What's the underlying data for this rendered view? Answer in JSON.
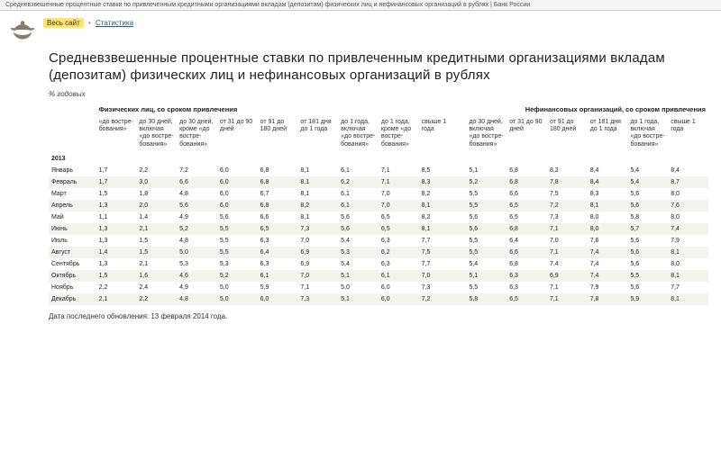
{
  "browser_tab": "Средневзвешенные процентные ставки по привлеченным кредитными организациями вкладам (депозитам) физических лиц и нефинансовых организаций в рублях | Банк России",
  "breadcrumb": {
    "all_site": "Весь сайт",
    "sep": "•",
    "stats": "Статистика"
  },
  "title": "Средневзвешенные процентные ставки по привлеченным кредитными организациями вкладам (депозитам) физических лиц и нефинансовых организаций в рублях",
  "unit": "% годовых",
  "group_left": "Физических лиц, со сроком привлечения",
  "group_right": "Нефинансовых организаций, со сроком привлечения",
  "cols": [
    "«до востре-бования»",
    "до 30 дней, включая «до востре-бования»",
    "до 30 дней, кроме «до востре-бования»",
    "от 31 до 90 дней",
    "от 91 до 180 дней",
    "от 181 дня до 1 года",
    "до 1 года, включая «до востре-бования»",
    "до 1 года, кроме «до востре-бования»",
    "свыше 1 года",
    "до 30 дней, включая «до востре-бования»",
    "от 31 до 90 дней",
    "от 91 до 180 дней",
    "от 181 дня до 1 года",
    "до 1 года, включая «до востре-бования»",
    "свыше 1 года"
  ],
  "year": "2013",
  "months": [
    "Январь",
    "Февраль",
    "Март",
    "Апрель",
    "Май",
    "Июнь",
    "Июль",
    "Август",
    "Сентябрь",
    "Октябрь",
    "Ноябрь",
    "Декабрь"
  ],
  "rows": [
    [
      "1,7",
      "2,2",
      "7,2",
      "6,0",
      "6,8",
      "8,1",
      "6,1",
      "7,1",
      "8,5",
      "5,1",
      "6,8",
      "8,2",
      "8,4",
      "5,4",
      "8,4"
    ],
    [
      "1,7",
      "3,0",
      "6,6",
      "6,0",
      "6,8",
      "8,1",
      "6,2",
      "7,1",
      "8,3",
      "5,2",
      "6,8",
      "7,8",
      "8,4",
      "5,4",
      "8,7"
    ],
    [
      "1,5",
      "1,8",
      "4,8",
      "6,0",
      "6,7",
      "8,1",
      "6,1",
      "7,0",
      "8,2",
      "5,5",
      "6,6",
      "7,5",
      "8,3",
      "5,6",
      "8,0"
    ],
    [
      "1,3",
      "2,0",
      "5,6",
      "6,0",
      "6,8",
      "8,2",
      "6,1",
      "7,0",
      "8,1",
      "5,5",
      "6,5",
      "7,2",
      "8,1",
      "5,6",
      "7,6"
    ],
    [
      "1,1",
      "1,4",
      "4,9",
      "5,6",
      "6,6",
      "8,1",
      "5,6",
      "6,5",
      "8,2",
      "5,6",
      "6,5",
      "7,3",
      "8,0",
      "5,8",
      "8,0"
    ],
    [
      "1,3",
      "2,1",
      "5,2",
      "5,5",
      "6,5",
      "7,3",
      "5,6",
      "6,5",
      "8,1",
      "5,6",
      "6,8",
      "7,1",
      "8,0",
      "5,7",
      "7,4"
    ],
    [
      "1,3",
      "1,5",
      "4,8",
      "5,5",
      "6,3",
      "7,0",
      "5,4",
      "6,3",
      "7,7",
      "5,5",
      "6,4",
      "7,0",
      "7,6",
      "5,6",
      "7,9"
    ],
    [
      "1,4",
      "1,5",
      "5,0",
      "5,5",
      "6,4",
      "6,9",
      "5,3",
      "6,2",
      "7,5",
      "5,5",
      "6,6",
      "7,1",
      "7,4",
      "5,6",
      "8,1"
    ],
    [
      "1,3",
      "2,1",
      "5,3",
      "5,3",
      "6,3",
      "6,9",
      "5,4",
      "6,3",
      "7,7",
      "5,4",
      "6,8",
      "7,4",
      "7,4",
      "5,6",
      "8,0"
    ],
    [
      "1,5",
      "1,6",
      "4,6",
      "5,2",
      "6,1",
      "7,0",
      "5,1",
      "6,1",
      "7,0",
      "5,1",
      "6,3",
      "6,9",
      "7,4",
      "5,5",
      "8,1"
    ],
    [
      "2,2",
      "2,4",
      "4,9",
      "5,0",
      "5,9",
      "7,1",
      "5,0",
      "6,0",
      "7,3",
      "5,5",
      "6,3",
      "7,1",
      "7,9",
      "5,6",
      "7,7"
    ],
    [
      "2,1",
      "2,2",
      "4,8",
      "5,0",
      "6,0",
      "7,3",
      "5,1",
      "6,0",
      "7,2",
      "5,8",
      "6,5",
      "7,1",
      "7,8",
      "5,9",
      "8,1"
    ]
  ],
  "footer": "Дата последнего обновления: 13 февраля 2014 года.",
  "colors": {
    "highlight": "#ffe36b",
    "link": "#1f58a6",
    "alt_row": "#f3f3f0",
    "eagle": "#8b7a66"
  }
}
